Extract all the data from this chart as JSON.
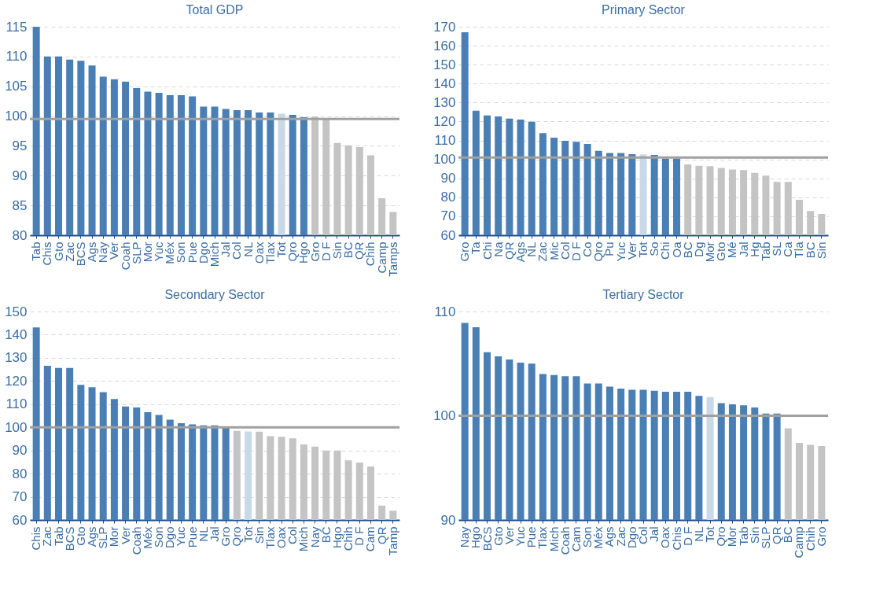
{
  "chart_data": [
    {
      "type": "bar",
      "title": "Total  GDP",
      "grid": "y",
      "ylim": [
        80,
        115
      ],
      "yticks": [
        80,
        85,
        90,
        95,
        100,
        105,
        110,
        115
      ],
      "categories": [
        "Tab",
        "Chis",
        "Gto",
        "Zac",
        "BCS",
        "Ags",
        "Nay",
        "Ver",
        "Coah",
        "SLP",
        "Mor",
        "Yuc",
        "Méx",
        "Son",
        "Pue",
        "Dgo",
        "Mich",
        "Jal",
        "Col",
        "NL",
        "Oax",
        "Tlax",
        "Tot",
        "Qro",
        "Hgo",
        "Gro",
        "D F",
        "Sin",
        "BC",
        "QR",
        "Chih",
        "Camp",
        "Tamps"
      ],
      "values": [
        115.0,
        110.0,
        110.0,
        109.5,
        109.3,
        108.5,
        106.6,
        106.2,
        105.8,
        104.7,
        104.1,
        103.9,
        103.5,
        103.5,
        103.3,
        101.6,
        101.6,
        101.2,
        101.0,
        101.0,
        100.6,
        100.6,
        100.4,
        100.2,
        99.8,
        99.9,
        99.6,
        95.5,
        95.1,
        94.8,
        93.4,
        86.2,
        83.9
      ],
      "colors": [
        "#4a7fb5",
        "#4a7fb5",
        "#4a7fb5",
        "#4a7fb5",
        "#4a7fb5",
        "#4a7fb5",
        "#4a7fb5",
        "#4a7fb5",
        "#4a7fb5",
        "#4a7fb5",
        "#4a7fb5",
        "#4a7fb5",
        "#4a7fb5",
        "#4a7fb5",
        "#4a7fb5",
        "#4a7fb5",
        "#4a7fb5",
        "#4a7fb5",
        "#4a7fb5",
        "#4a7fb5",
        "#4a7fb5",
        "#4a7fb5",
        "#c9d9e8",
        "#4a7fb5",
        "#4a7fb5",
        "#c4c4c4",
        "#c4c4c4",
        "#c4c4c4",
        "#c4c4c4",
        "#c4c4c4",
        "#c4c4c4",
        "#c4c4c4",
        "#c4c4c4"
      ],
      "ref_lines": [
        {
          "axis": "y",
          "value": 99.5,
          "color": "#a0a0a0"
        }
      ]
    },
    {
      "type": "bar",
      "title": "Primary Sector",
      "grid": "y",
      "ylim": [
        60,
        170
      ],
      "yticks": [
        60,
        70,
        80,
        90,
        100,
        110,
        120,
        130,
        140,
        150,
        160,
        170
      ],
      "categories": [
        "Gro",
        "Ta",
        "Chi",
        "Na",
        "QR",
        "Ags",
        "NL",
        "Zac",
        "Mic",
        "Col",
        "D F",
        "Co",
        "Qro",
        "Pu",
        "Yuc",
        "Ver",
        "Tot",
        "So",
        "Chi",
        "Oa",
        "BC",
        "Dg",
        "Mor",
        "Gto",
        "Mé",
        "Jal",
        "Hg",
        "Tab",
        "SL",
        "Ca",
        "Tla",
        "BC",
        "Sin"
      ],
      "values": [
        167.1,
        125.7,
        123.2,
        122.7,
        121.5,
        121.0,
        119.9,
        113.9,
        111.5,
        109.8,
        109.3,
        108.1,
        104.5,
        103.4,
        103.4,
        102.8,
        102.6,
        102.3,
        100.5,
        100.5,
        97.4,
        96.6,
        96.4,
        95.5,
        94.7,
        94.3,
        92.9,
        91.4,
        88.1,
        88.1,
        78.7,
        72.8,
        71.2
      ],
      "colors": [
        "#4a7fb5",
        "#4a7fb5",
        "#4a7fb5",
        "#4a7fb5",
        "#4a7fb5",
        "#4a7fb5",
        "#4a7fb5",
        "#4a7fb5",
        "#4a7fb5",
        "#4a7fb5",
        "#4a7fb5",
        "#4a7fb5",
        "#4a7fb5",
        "#4a7fb5",
        "#4a7fb5",
        "#4a7fb5",
        "#c9d9e8",
        "#4a7fb5",
        "#4a7fb5",
        "#4a7fb5",
        "#c4c4c4",
        "#c4c4c4",
        "#c4c4c4",
        "#c4c4c4",
        "#c4c4c4",
        "#c4c4c4",
        "#c4c4c4",
        "#c4c4c4",
        "#c4c4c4",
        "#c4c4c4",
        "#c4c4c4",
        "#c4c4c4",
        "#c4c4c4"
      ],
      "ref_lines": [
        {
          "axis": "y",
          "value": 101.0,
          "color": "#a0a0a0"
        }
      ]
    },
    {
      "type": "bar",
      "title": "Secondary Sector",
      "grid": "y",
      "ylim": [
        60,
        150
      ],
      "yticks": [
        60,
        70,
        80,
        90,
        100,
        110,
        120,
        130,
        140,
        150
      ],
      "categories": [
        "Chis",
        "Zac",
        "Tab",
        "BCS",
        "Gto",
        "Ags",
        "SLP",
        "Mor",
        "Ver",
        "Coah",
        "Méx",
        "Son",
        "Dgo",
        "Yuc",
        "Pue",
        "NL",
        "Jal",
        "Gro",
        "Qro",
        "Tot",
        "Sin",
        "Tlax",
        "Oax",
        "Col",
        "Mich",
        "Nay",
        "BC",
        "Hgo",
        "Chih",
        "D F",
        "Cam",
        "QR",
        "Tamp"
      ],
      "values": [
        143.1,
        126.6,
        125.6,
        125.6,
        118.3,
        117.3,
        115.2,
        112.2,
        109.0,
        108.6,
        106.5,
        105.3,
        103.3,
        101.8,
        101.3,
        100.8,
        100.8,
        100.1,
        98.5,
        98.2,
        98.1,
        96.2,
        95.9,
        95.2,
        92.6,
        91.7,
        90.0,
        90.0,
        85.7,
        84.8,
        83.1,
        66.2,
        64.0
      ],
      "colors": [
        "#4a7fb5",
        "#4a7fb5",
        "#4a7fb5",
        "#4a7fb5",
        "#4a7fb5",
        "#4a7fb5",
        "#4a7fb5",
        "#4a7fb5",
        "#4a7fb5",
        "#4a7fb5",
        "#4a7fb5",
        "#4a7fb5",
        "#4a7fb5",
        "#4a7fb5",
        "#4a7fb5",
        "#4a7fb5",
        "#4a7fb5",
        "#4a7fb5",
        "#c4c4c4",
        "#c9d9e8",
        "#c4c4c4",
        "#c4c4c4",
        "#c4c4c4",
        "#c4c4c4",
        "#c4c4c4",
        "#c4c4c4",
        "#c4c4c4",
        "#c4c4c4",
        "#c4c4c4",
        "#c4c4c4",
        "#c4c4c4",
        "#c4c4c4",
        "#c4c4c4"
      ],
      "ref_lines": [
        {
          "axis": "y",
          "value": 100.0,
          "color": "#a0a0a0"
        }
      ]
    },
    {
      "type": "bar",
      "title": "Tertiary Sector",
      "grid": "y",
      "ylim": [
        90,
        110
      ],
      "yticks": [
        90,
        100,
        110
      ],
      "categories": [
        "Nay",
        "Hgo",
        "BCS",
        "Gto",
        "Ver",
        "Yuc",
        "Pue",
        "Tlax",
        "Mich",
        "Coah",
        "Cam",
        "Son",
        "Méx",
        "Ags",
        "Zac",
        "Dgo",
        "Col",
        "Jal",
        "Oax",
        "Chis",
        "D F",
        "NL",
        "Tot",
        "Qro",
        "Mor",
        "Tab",
        "Sin",
        "SLP",
        "QR",
        "BC",
        "Camp",
        "Chih",
        "Gro"
      ],
      "values": [
        108.9,
        108.5,
        106.1,
        105.7,
        105.4,
        105.1,
        105.0,
        104.0,
        103.9,
        103.8,
        103.8,
        103.1,
        103.1,
        102.8,
        102.6,
        102.5,
        102.5,
        102.4,
        102.3,
        102.3,
        102.3,
        101.9,
        101.8,
        101.2,
        101.1,
        101.0,
        100.8,
        100.2,
        100.2,
        98.8,
        97.4,
        97.2,
        97.1
      ],
      "colors": [
        "#4a7fb5",
        "#4a7fb5",
        "#4a7fb5",
        "#4a7fb5",
        "#4a7fb5",
        "#4a7fb5",
        "#4a7fb5",
        "#4a7fb5",
        "#4a7fb5",
        "#4a7fb5",
        "#4a7fb5",
        "#4a7fb5",
        "#4a7fb5",
        "#4a7fb5",
        "#4a7fb5",
        "#4a7fb5",
        "#4a7fb5",
        "#4a7fb5",
        "#4a7fb5",
        "#4a7fb5",
        "#4a7fb5",
        "#4a7fb5",
        "#c9d9e8",
        "#4a7fb5",
        "#4a7fb5",
        "#4a7fb5",
        "#4a7fb5",
        "#4a7fb5",
        "#4a7fb5",
        "#c4c4c4",
        "#c4c4c4",
        "#c4c4c4",
        "#c4c4c4"
      ],
      "ref_lines": [
        {
          "axis": "y",
          "value": 100.0,
          "color": "#a0a0a0"
        }
      ]
    }
  ]
}
